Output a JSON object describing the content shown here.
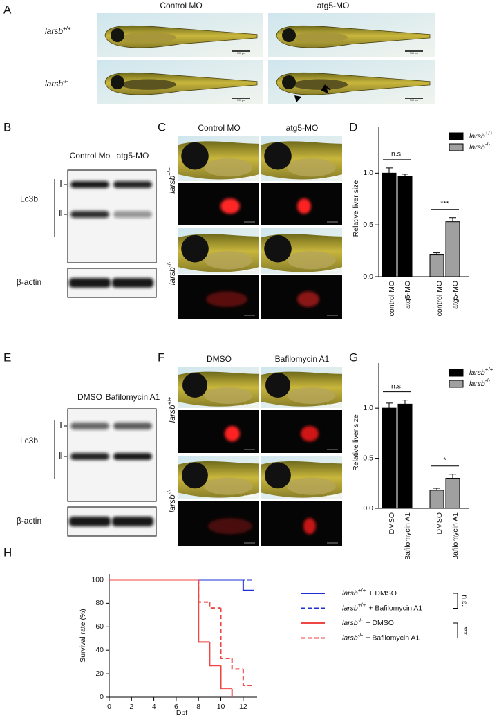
{
  "panel_labels": [
    "A",
    "B",
    "C",
    "D",
    "E",
    "F",
    "G",
    "H"
  ],
  "panel_a": {
    "columns": [
      "Control MO",
      "atg5-MO"
    ],
    "rows": [
      {
        "name": "larsb",
        "superscript": "+/+"
      },
      {
        "name": "larsb",
        "superscript": "-/-"
      }
    ],
    "scale_bar": "500 μm"
  },
  "panel_b": {
    "columns": [
      "Control Mo",
      "atg5-MO"
    ],
    "protein": "Lc3b",
    "bands": [
      "Ⅰ",
      "Ⅱ"
    ],
    "loading": "β-actin"
  },
  "panel_c": {
    "columns": [
      "Control MO",
      "atg5-MO"
    ],
    "rows": [
      {
        "name": "larsb",
        "superscript": "+/+"
      },
      {
        "name": "larsb",
        "superscript": "-/-"
      }
    ]
  },
  "panel_e": {
    "columns": [
      "DMSO",
      "Bafilomycin A1"
    ],
    "protein": "Lc3b",
    "bands": [
      "Ⅰ",
      "Ⅱ"
    ],
    "loading": "β-actin"
  },
  "panel_f": {
    "columns": [
      "DMSO",
      "Bafilomycin A1"
    ],
    "rows": [
      {
        "name": "larsb",
        "superscript": "+/+"
      },
      {
        "name": "larsb",
        "superscript": "-/-"
      }
    ]
  },
  "chart_data": [
    {
      "type": "bar",
      "ylabel": "Relative liver size",
      "categories": [
        "control MO",
        "atg5-MO",
        "control MO",
        "atg5-MO"
      ],
      "series": [
        {
          "name": "larsb",
          "superscript": "+/+",
          "color": "#000000",
          "values": [
            1.0,
            0.97,
            null,
            null
          ],
          "errors": [
            0.05,
            0.02,
            null,
            null
          ]
        },
        {
          "name": "larsb",
          "superscript": "-/-",
          "color": "#a0a0a0",
          "values": [
            null,
            null,
            0.21,
            0.53
          ],
          "errors": [
            null,
            null,
            0.02,
            0.04
          ]
        }
      ],
      "ylim": [
        0,
        1.45
      ],
      "yticks": [
        {
          "value": 0,
          "label": "0.0"
        },
        {
          "value": 0.5,
          "label": "0.5"
        },
        {
          "value": 1,
          "label": "1.0"
        }
      ],
      "annotations": [
        "n.s.",
        "***"
      ],
      "legend": "upper right"
    },
    {
      "type": "bar",
      "ylabel": "Relative liver size",
      "categories": [
        "DMSO",
        "Bafilomycin A1",
        "DMSO",
        "Bafilomycin A1"
      ],
      "series": [
        {
          "name": "larsb",
          "superscript": "+/+",
          "color": "#000000",
          "values": [
            1.0,
            1.04,
            null,
            null
          ],
          "errors": [
            0.05,
            0.04,
            null,
            null
          ]
        },
        {
          "name": "larsb",
          "superscript": "-/-",
          "color": "#a0a0a0",
          "values": [
            null,
            null,
            0.18,
            0.3
          ],
          "errors": [
            null,
            null,
            0.02,
            0.04
          ]
        }
      ],
      "ylim": [
        0,
        1.45
      ],
      "yticks": [
        {
          "value": 0,
          "label": "0.0"
        },
        {
          "value": 0.5,
          "label": "0.5"
        },
        {
          "value": 1,
          "label": "1.0"
        }
      ],
      "annotations": [
        "n.s.",
        "*"
      ],
      "legend": "upper right"
    },
    {
      "type": "line",
      "step": true,
      "xlabel": "Dpf",
      "ylabel": "Survival rate (%)",
      "xlim": [
        0,
        13
      ],
      "ylim": [
        0,
        105
      ],
      "xticks": [
        0,
        2,
        4,
        6,
        8,
        10,
        12
      ],
      "yticks": [
        0,
        20,
        40,
        60,
        80,
        100
      ],
      "series": [
        {
          "name": "larsb",
          "superscript": "+/+",
          "treatment": "+ DMSO",
          "color": "#1f2fd6",
          "dash": false,
          "x": [
            0,
            12,
            13
          ],
          "values": [
            100,
            91,
            91
          ]
        },
        {
          "name": "larsb",
          "superscript": "+/+",
          "treatment": "+ Bafilomycin A1",
          "color": "#1f2fd6",
          "dash": true,
          "x": [
            0,
            13
          ],
          "values": [
            100,
            100
          ]
        },
        {
          "name": "larsb",
          "superscript": "-/-",
          "treatment": "+ DMSO",
          "color": "#f04545",
          "dash": false,
          "x": [
            0,
            8,
            9,
            10,
            11
          ],
          "values": [
            100,
            47,
            27,
            7,
            0
          ]
        },
        {
          "name": "larsb",
          "superscript": "-/-",
          "treatment": "+ Bafilomycin A1",
          "color": "#f04545",
          "dash": true,
          "x": [
            0,
            8,
            9,
            10,
            11,
            12,
            13
          ],
          "values": [
            100,
            81,
            76,
            33,
            24,
            10,
            10
          ]
        }
      ],
      "annotations": [
        "n.s.",
        "***"
      ],
      "legend": "right"
    }
  ]
}
